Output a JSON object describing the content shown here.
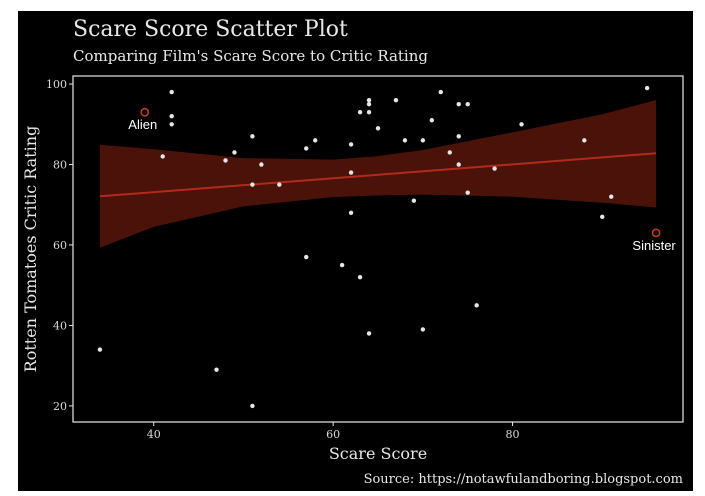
{
  "chart_data": {
    "type": "scatter",
    "title": "Scare Score Scatter Plot",
    "subtitle": "Comparing Film's Scare Score to Critic Rating",
    "xlabel": "Scare Score",
    "ylabel": "Rotten Tomatoes Critic Rating",
    "caption": "Source: https://notawfulandboring.blogspot.com",
    "xlim": [
      31,
      99
    ],
    "ylim": [
      16,
      102
    ],
    "x_ticks": [
      40,
      60,
      80
    ],
    "y_ticks": [
      20,
      40,
      60,
      80,
      100
    ],
    "grid": false,
    "colors": {
      "background": "#000000",
      "points": "#e6e6e6",
      "trend_line": "#b22a1a",
      "confidence_band": "#4a1208",
      "highlight": "#c0392b",
      "panel_border": "#e8e8e8"
    },
    "points": [
      {
        "x": 34,
        "y": 34
      },
      {
        "x": 41,
        "y": 82
      },
      {
        "x": 42,
        "y": 98
      },
      {
        "x": 42,
        "y": 92
      },
      {
        "x": 42,
        "y": 90
      },
      {
        "x": 47,
        "y": 29
      },
      {
        "x": 48,
        "y": 81
      },
      {
        "x": 49,
        "y": 83
      },
      {
        "x": 51,
        "y": 87
      },
      {
        "x": 51,
        "y": 75
      },
      {
        "x": 51,
        "y": 20
      },
      {
        "x": 52,
        "y": 80
      },
      {
        "x": 54,
        "y": 75
      },
      {
        "x": 57,
        "y": 84
      },
      {
        "x": 57,
        "y": 57
      },
      {
        "x": 58,
        "y": 86
      },
      {
        "x": 61,
        "y": 55
      },
      {
        "x": 62,
        "y": 85
      },
      {
        "x": 62,
        "y": 78
      },
      {
        "x": 62,
        "y": 68
      },
      {
        "x": 63,
        "y": 93
      },
      {
        "x": 63,
        "y": 52
      },
      {
        "x": 64,
        "y": 96
      },
      {
        "x": 64,
        "y": 95
      },
      {
        "x": 64,
        "y": 93
      },
      {
        "x": 64,
        "y": 38
      },
      {
        "x": 65,
        "y": 89
      },
      {
        "x": 67,
        "y": 96
      },
      {
        "x": 68,
        "y": 86
      },
      {
        "x": 69,
        "y": 71
      },
      {
        "x": 70,
        "y": 86
      },
      {
        "x": 70,
        "y": 39
      },
      {
        "x": 71,
        "y": 91
      },
      {
        "x": 72,
        "y": 98
      },
      {
        "x": 73,
        "y": 83
      },
      {
        "x": 74,
        "y": 95
      },
      {
        "x": 74,
        "y": 87
      },
      {
        "x": 74,
        "y": 80
      },
      {
        "x": 75,
        "y": 95
      },
      {
        "x": 75,
        "y": 73
      },
      {
        "x": 76,
        "y": 45
      },
      {
        "x": 78,
        "y": 79
      },
      {
        "x": 81,
        "y": 90
      },
      {
        "x": 88,
        "y": 86
      },
      {
        "x": 90,
        "y": 67
      },
      {
        "x": 91,
        "y": 72
      },
      {
        "x": 95,
        "y": 99
      }
    ],
    "highlighted": [
      {
        "label": "Alien",
        "x": 39,
        "y": 93
      },
      {
        "label": "Sinister",
        "x": 96,
        "y": 63
      }
    ],
    "trend": {
      "x": [
        34,
        96
      ],
      "y": [
        72.1,
        82.8
      ]
    },
    "confidence_band": {
      "x": [
        34,
        40,
        50,
        60,
        65,
        70,
        80,
        90,
        96
      ],
      "lower": [
        59.3,
        64.5,
        69.6,
        71.9,
        72.3,
        72.5,
        72.0,
        70.5,
        69.3
      ],
      "upper": [
        84.9,
        83.8,
        81.6,
        81.2,
        82.1,
        83.6,
        88.0,
        92.5,
        96.0
      ]
    }
  }
}
